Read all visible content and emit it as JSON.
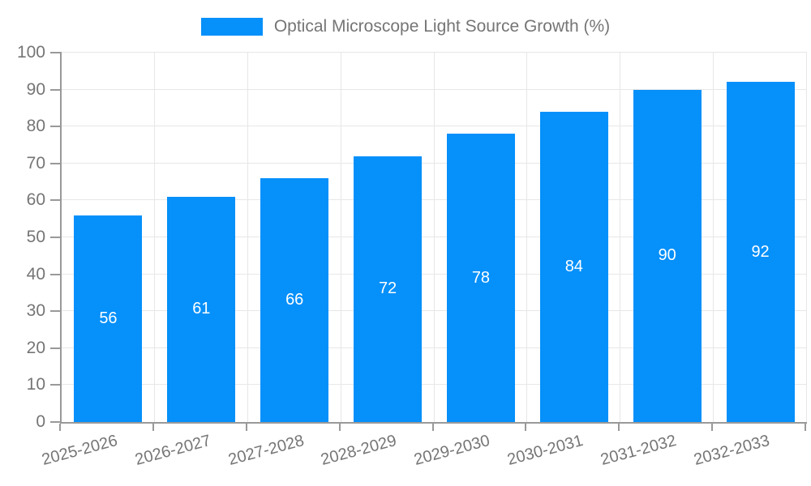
{
  "legend": {
    "label": "Optical Microscope Light Source Growth (%)"
  },
  "colors": {
    "bar": "#0590fa",
    "vallabel": "#ffffff",
    "text": "#757575",
    "axis": "#999999",
    "grid": "#e7e7e7"
  },
  "chart_data": {
    "type": "bar",
    "title": "Optical Microscope Light Source Growth (%)",
    "categories": [
      "2025-2026",
      "2026-2027",
      "2027-2028",
      "2028-2029",
      "2029-2030",
      "2030-2031",
      "2031-2032",
      "2032-2033"
    ],
    "values": [
      56,
      61,
      66,
      72,
      78,
      84,
      90,
      92
    ],
    "xlabel": "",
    "ylabel": "",
    "ylim": [
      0,
      100
    ],
    "yticks": [
      0,
      10,
      20,
      30,
      40,
      50,
      60,
      70,
      80,
      90,
      100
    ],
    "grid": true,
    "legend_position": "top",
    "value_labels": "inside-center"
  }
}
